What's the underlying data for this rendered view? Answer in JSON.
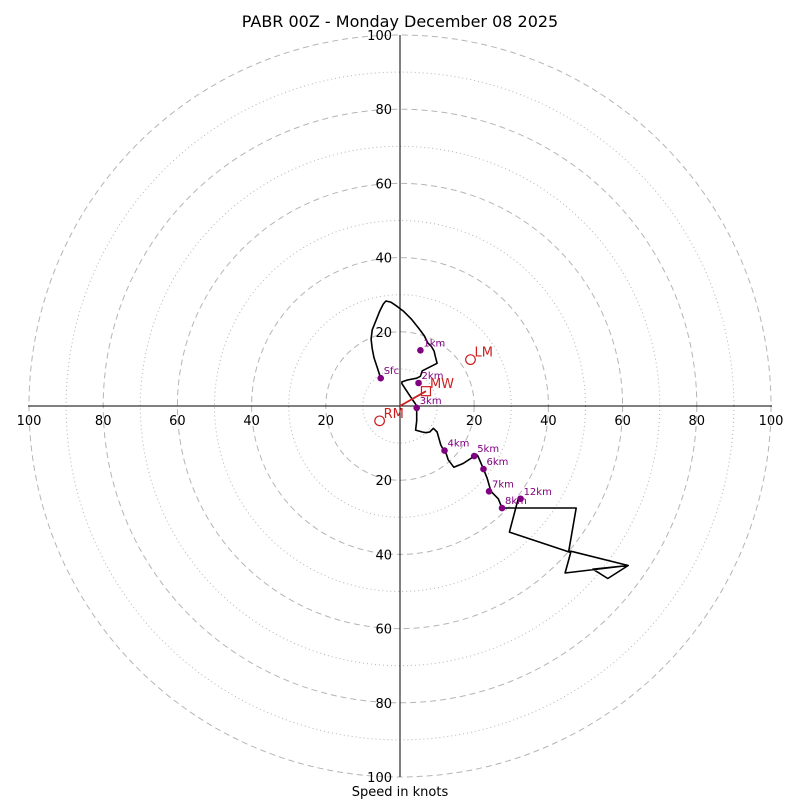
{
  "title": "PABR 00Z - Monday December 08 2025",
  "chart_data": {
    "type": "hodograph",
    "title": "PABR 00Z - Monday December 08 2025",
    "xlabel": "Speed in knots",
    "units": "knots",
    "range": [
      -100,
      100
    ],
    "rings_major": [
      20,
      40,
      60,
      80,
      100
    ],
    "rings_minor": [
      10,
      30,
      50,
      70,
      90
    ],
    "tick_labels": [
      "100",
      "80",
      "60",
      "40",
      "20",
      "20",
      "40",
      "60",
      "80",
      "100"
    ],
    "colors": {
      "trace": "#000000",
      "height": "#800080",
      "motion": "#cc1f1f",
      "ring": "#b5b5b5"
    },
    "trace": [
      [
        -5.2,
        7.5
      ],
      [
        -6,
        10
      ],
      [
        -7,
        13
      ],
      [
        -7.5,
        15.5
      ],
      [
        -7.8,
        18
      ],
      [
        -7.5,
        20.5
      ],
      [
        -6.5,
        23
      ],
      [
        -5.5,
        25.5
      ],
      [
        -4.5,
        27.5
      ],
      [
        -3.8,
        28.3
      ],
      [
        -2.5,
        28
      ],
      [
        -1,
        27
      ],
      [
        1,
        25.5
      ],
      [
        3,
        23.5
      ],
      [
        5,
        21
      ],
      [
        6.5,
        19
      ],
      [
        7.5,
        17
      ],
      [
        8.5,
        16
      ],
      [
        9.2,
        14.8
      ],
      [
        9.5,
        13.5
      ],
      [
        10,
        11.5
      ],
      [
        6,
        9.5
      ],
      [
        5.5,
        8
      ],
      [
        4.5,
        7.5
      ],
      [
        2,
        7
      ],
      [
        0.5,
        6.5
      ],
      [
        0.5,
        6
      ],
      [
        1.5,
        4.5
      ],
      [
        2.5,
        3
      ],
      [
        3.5,
        1.5
      ],
      [
        4,
        0.8
      ],
      [
        4.5,
        0
      ],
      [
        4.5,
        -1.5
      ],
      [
        4.5,
        -4
      ],
      [
        4.2,
        -6.5
      ],
      [
        6,
        -7
      ],
      [
        7,
        -7.2
      ],
      [
        8,
        -7
      ],
      [
        9,
        -6
      ],
      [
        10,
        -7
      ],
      [
        11,
        -10.5
      ],
      [
        11.8,
        -12
      ],
      [
        12.5,
        -13
      ],
      [
        13,
        -14.5
      ],
      [
        14.5,
        -16.5
      ],
      [
        17,
        -15.5
      ],
      [
        19.3,
        -14
      ],
      [
        20.5,
        -13
      ],
      [
        21,
        -13.5
      ],
      [
        22.5,
        -17
      ],
      [
        23.5,
        -19.5
      ],
      [
        24.5,
        -23
      ],
      [
        26.5,
        -25
      ],
      [
        27.5,
        -27.5
      ],
      [
        47.5,
        -27.5
      ],
      [
        45.5,
        -39
      ],
      [
        61.5,
        -43
      ],
      [
        56,
        -46.5
      ],
      [
        52,
        -44
      ],
      [
        61.5,
        -43
      ],
      [
        44.5,
        -45
      ],
      [
        46,
        -39.5
      ],
      [
        29.5,
        -34
      ],
      [
        32,
        -24.5
      ],
      [
        33,
        -25
      ]
    ],
    "height_markers": [
      {
        "label": "Sfc",
        "u": -5.2,
        "v": 7.5
      },
      {
        "label": "1km",
        "u": 5.5,
        "v": 15
      },
      {
        "label": "2km",
        "u": 5,
        "v": 6.2
      },
      {
        "label": "3km",
        "u": 4.5,
        "v": -0.5
      },
      {
        "label": "4km",
        "u": 12,
        "v": -12
      },
      {
        "label": "5km",
        "u": 20,
        "v": -13.5
      },
      {
        "label": "6km",
        "u": 22.5,
        "v": -17
      },
      {
        "label": "7km",
        "u": 24,
        "v": -23
      },
      {
        "label": "8km",
        "u": 27.5,
        "v": -27.5
      },
      {
        "label": "12km",
        "u": 32.5,
        "v": -25
      }
    ],
    "storm_motion": [
      {
        "label": "LM",
        "u": 19,
        "v": 12.5,
        "marker": "circle"
      },
      {
        "label": "MW",
        "u": 7,
        "v": 4,
        "marker": "square"
      },
      {
        "label": "RM",
        "u": -5.5,
        "v": -4,
        "marker": "circle"
      }
    ],
    "shear_vector": {
      "from": [
        0,
        0
      ],
      "to": [
        7,
        4
      ]
    }
  }
}
